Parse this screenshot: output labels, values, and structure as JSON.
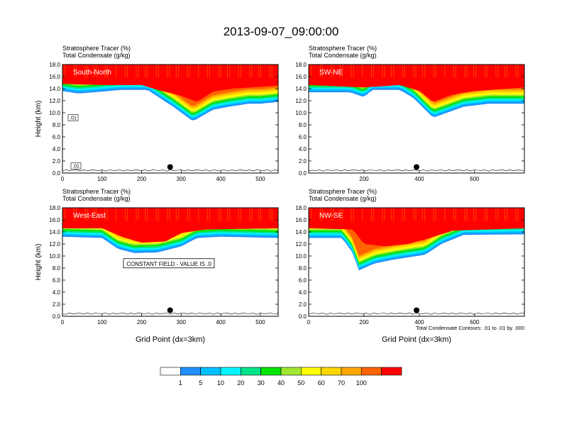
{
  "figure": {
    "title": "2013-09-07_09:00:00",
    "contour_note": "Total Condensate Contours: .01 to .01 by .000"
  },
  "colorbar": {
    "labels": [
      "1",
      "5",
      "10",
      "20",
      "30",
      "40",
      "50",
      "60",
      "70",
      "100"
    ],
    "colors": [
      "#ffffff",
      "#1e90ff",
      "#00bfff",
      "#00f5ff",
      "#00e38a",
      "#00e400",
      "#a0e632",
      "#ffff00",
      "#ffd700",
      "#ffa500",
      "#ff6400",
      "#ff0000"
    ]
  },
  "chart_data": [
    {
      "type": "heatmap",
      "panel_label": "South-North",
      "field_title": "Stratosphere Tracer   (%)",
      "field_title_2": "Total Condensate   (g/kg)",
      "ylabel": "Height (km)",
      "xlabel": "",
      "ylim": [
        0,
        18
      ],
      "xlim": [
        0,
        545
      ],
      "yticks": [
        "0.0",
        "2.0",
        "4.0",
        "6.0",
        "8.0",
        "10.0",
        "12.0",
        "14.0",
        "16.0",
        "18.0"
      ],
      "xticks": [
        0,
        100,
        200,
        300,
        400,
        500
      ],
      "tracer_base_km": [
        [
          0,
          13.6
        ],
        [
          40,
          13.2
        ],
        [
          80,
          13.4
        ],
        [
          150,
          13.8
        ],
        [
          215,
          13.8
        ],
        [
          245,
          12.5
        ],
        [
          280,
          11.0
        ],
        [
          330,
          8.6
        ],
        [
          380,
          10.5
        ],
        [
          420,
          11.0
        ],
        [
          470,
          11.5
        ],
        [
          500,
          11.5
        ],
        [
          545,
          11.8
        ]
      ],
      "tracer_core_km": [
        [
          0,
          14.8
        ],
        [
          100,
          14.6
        ],
        [
          200,
          14.6
        ],
        [
          240,
          13.8
        ],
        [
          300,
          12.8
        ],
        [
          340,
          11.8
        ],
        [
          380,
          13.5
        ],
        [
          430,
          14.0
        ],
        [
          500,
          14.3
        ],
        [
          545,
          14.5
        ]
      ],
      "contour_labels": [
        ".01",
        ".01"
      ],
      "marker": {
        "x": 272,
        "y": 1.0
      },
      "annotation": ""
    },
    {
      "type": "heatmap",
      "panel_label": "SW-NE",
      "field_title": "Stratosphere Tracer   (%)",
      "field_title_2": "Total Condensate   (g/kg)",
      "ylabel": "",
      "xlabel": "",
      "ylim": [
        0,
        18
      ],
      "xlim": [
        0,
        780
      ],
      "yticks": [
        "0.0",
        "2.0",
        "4.0",
        "6.0",
        "8.0",
        "10.0",
        "12.0",
        "14.0",
        "16.0",
        "18.0"
      ],
      "xticks": [
        200,
        400,
        600
      ],
      "tracer_base_km": [
        [
          0,
          13.4
        ],
        [
          150,
          13.4
        ],
        [
          200,
          12.6
        ],
        [
          230,
          13.8
        ],
        [
          330,
          13.8
        ],
        [
          380,
          12.4
        ],
        [
          450,
          9.2
        ],
        [
          500,
          10.0
        ],
        [
          560,
          11.0
        ],
        [
          650,
          11.5
        ],
        [
          780,
          11.5
        ]
      ],
      "tracer_core_km": [
        [
          0,
          14.6
        ],
        [
          200,
          14.2
        ],
        [
          330,
          14.6
        ],
        [
          400,
          13.6
        ],
        [
          450,
          11.8
        ],
        [
          520,
          13.0
        ],
        [
          600,
          13.6
        ],
        [
          780,
          14.2
        ]
      ],
      "contour_labels": [],
      "marker": {
        "x": 390,
        "y": 1.0
      },
      "annotation": ""
    },
    {
      "type": "heatmap",
      "panel_label": "West-East",
      "field_title": "Stratosphere Tracer   (%)",
      "field_title_2": "Total Condensate   (g/kg)",
      "ylabel": "Height (km)",
      "xlabel": "Grid Point (dx=3km)",
      "ylim": [
        0,
        18
      ],
      "xlim": [
        0,
        545
      ],
      "yticks": [
        "0.0",
        "2.0",
        "4.0",
        "6.0",
        "8.0",
        "10.0",
        "12.0",
        "14.0",
        "16.0",
        "18.0"
      ],
      "xticks": [
        0,
        100,
        200,
        300,
        400,
        500
      ],
      "tracer_base_km": [
        [
          0,
          13.2
        ],
        [
          100,
          13.0
        ],
        [
          140,
          11.2
        ],
        [
          180,
          10.5
        ],
        [
          240,
          10.6
        ],
        [
          300,
          11.6
        ],
        [
          340,
          13.0
        ],
        [
          400,
          13.2
        ],
        [
          545,
          13.0
        ]
      ],
      "tracer_core_km": [
        [
          0,
          14.6
        ],
        [
          100,
          14.6
        ],
        [
          150,
          13.2
        ],
        [
          200,
          12.2
        ],
        [
          260,
          12.4
        ],
        [
          300,
          13.8
        ],
        [
          360,
          14.4
        ],
        [
          545,
          14.6
        ]
      ],
      "contour_labels": [],
      "marker": {
        "x": 272,
        "y": 1.0
      },
      "annotation": "CONSTANT FIELD - VALUE IS .0"
    },
    {
      "type": "heatmap",
      "panel_label": "NW-SE",
      "field_title": "Stratosphere Tracer   (%)",
      "field_title_2": "Total Condensate   (g/kg)",
      "ylabel": "",
      "xlabel": "Grid Point (dx=3km)",
      "ylim": [
        0,
        18
      ],
      "xlim": [
        0,
        780
      ],
      "yticks": [
        "0.0",
        "2.0",
        "4.0",
        "6.0",
        "8.0",
        "10.0",
        "12.0",
        "14.0",
        "16.0",
        "18.0"
      ],
      "xticks": [
        0,
        200,
        400,
        600
      ],
      "tracer_base_km": [
        [
          0,
          13.0
        ],
        [
          120,
          13.0
        ],
        [
          160,
          10.5
        ],
        [
          180,
          7.6
        ],
        [
          240,
          8.8
        ],
        [
          320,
          9.5
        ],
        [
          420,
          10.2
        ],
        [
          480,
          12.0
        ],
        [
          560,
          13.5
        ],
        [
          780,
          13.6
        ]
      ],
      "tracer_core_km": [
        [
          0,
          14.6
        ],
        [
          160,
          14.4
        ],
        [
          200,
          12.0
        ],
        [
          280,
          11.6
        ],
        [
          360,
          12.0
        ],
        [
          440,
          13.0
        ],
        [
          520,
          14.2
        ],
        [
          780,
          14.6
        ]
      ],
      "contour_labels": [],
      "marker": {
        "x": 390,
        "y": 1.0
      },
      "annotation": ""
    }
  ]
}
